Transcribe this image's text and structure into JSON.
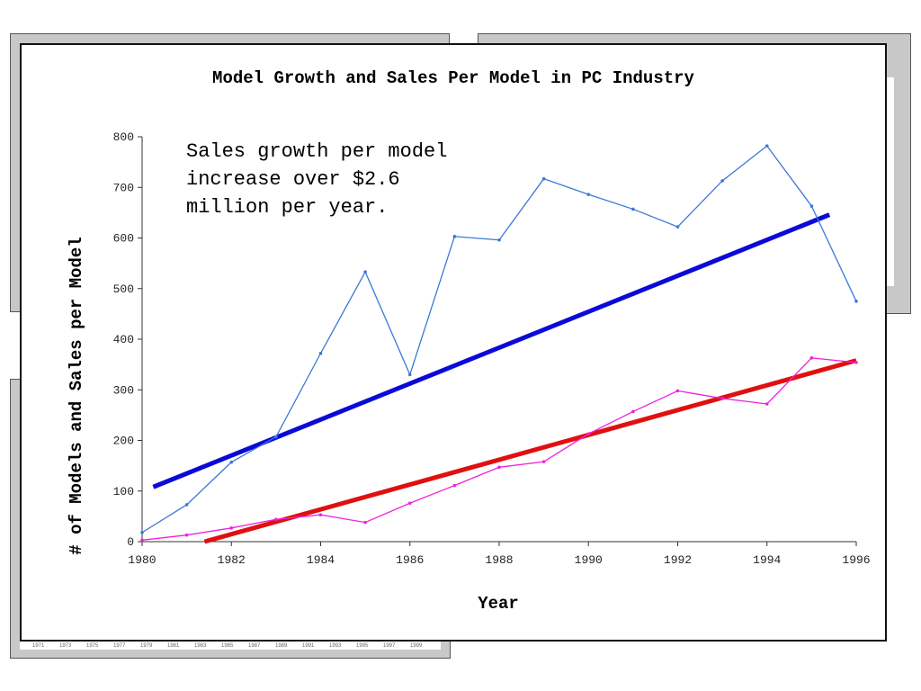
{
  "chart_data": {
    "type": "line",
    "title": "Model Growth and Sales Per Model in PC Industry",
    "xlabel": "Year",
    "ylabel": "# of Models and Sales per Model",
    "annotation": "Sales growth per model\nincrease over $2.6\nmillion per year.",
    "xlim": [
      1980,
      1996
    ],
    "ylim": [
      0,
      800
    ],
    "x_ticks": [
      1980,
      1982,
      1984,
      1986,
      1988,
      1990,
      1992,
      1994,
      1996
    ],
    "y_ticks": [
      0,
      100,
      200,
      300,
      400,
      500,
      600,
      700,
      800
    ],
    "grid": false,
    "series": [
      {
        "color": "#3a78d8",
        "x": [
          1980,
          1981,
          1982,
          1983,
          1984,
          1985,
          1986,
          1987,
          1988,
          1989,
          1990,
          1991,
          1992,
          1993,
          1994,
          1995,
          1996
        ],
        "values": [
          18,
          73,
          157,
          207,
          372,
          533,
          330,
          603,
          596,
          717,
          686,
          657,
          622,
          713,
          782,
          663,
          475
        ]
      },
      {
        "color": "#ee22dd",
        "x": [
          1980,
          1981,
          1982,
          1983,
          1984,
          1985,
          1986,
          1987,
          1988,
          1989,
          1990,
          1991,
          1992,
          1993,
          1994,
          1995,
          1996
        ],
        "values": [
          3,
          13,
          27,
          44,
          53,
          38,
          76,
          111,
          147,
          158,
          213,
          257,
          298,
          283,
          272,
          363,
          354
        ]
      }
    ],
    "trendlines": [
      {
        "color": "#0a0ad8",
        "x": [
          1980.25,
          1995.4
        ],
        "values": [
          108,
          646
        ]
      },
      {
        "color": "#e01010",
        "x": [
          1981.4,
          1996
        ],
        "values": [
          0,
          358
        ]
      }
    ]
  },
  "background_panels": {
    "year_labels": [
      "1971",
      "1973",
      "1975",
      "1977",
      "1979",
      "1981",
      "1983",
      "1985",
      "1987",
      "1989",
      "1991",
      "1993",
      "1995",
      "1997",
      "1999"
    ]
  }
}
